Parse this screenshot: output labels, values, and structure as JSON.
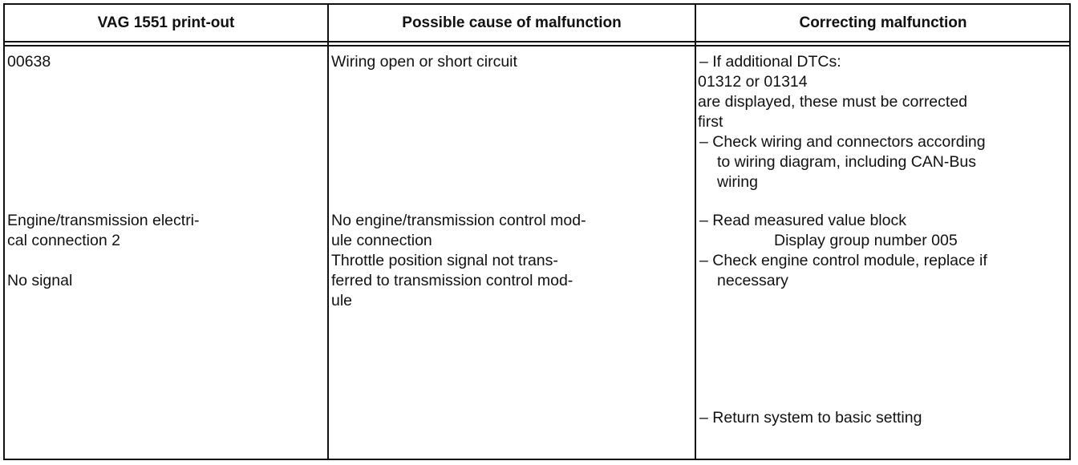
{
  "table": {
    "headers": [
      "VAG 1551 print-out",
      "Possible cause of malfunction",
      "Correcting malfunction"
    ],
    "rows": [
      {
        "printout": [
          "00638"
        ],
        "cause": [
          "Wiring open or short circuit"
        ],
        "correction": [
          "– If additional DTCs:",
          "01312 or 01314",
          "are displayed, these must be corrected",
          "first",
          "– Check wiring and connectors according",
          "to wiring diagram, including CAN-Bus",
          "wiring"
        ]
      },
      {
        "printout": [
          "Engine/transmission electri-",
          "cal connection 2",
          "No signal"
        ],
        "cause": [
          "No engine/transmission control mod-",
          "ule connection",
          "Throttle position signal not trans-",
          "ferred to transmission control mod-",
          "ule"
        ],
        "correction": [
          "– Read measured value block",
          "Display group number 005",
          "– Check engine control module, replace if",
          "necessary",
          "– Return system to basic setting"
        ]
      }
    ]
  }
}
